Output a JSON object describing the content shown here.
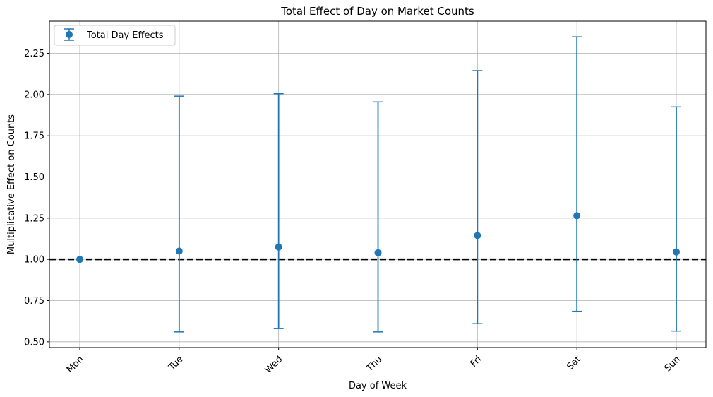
{
  "chart_data": {
    "type": "scatter",
    "title": "Total Effect of Day on Market Counts",
    "xlabel": "Day of Week",
    "ylabel": "Multiplicative Effect on Counts",
    "categories": [
      "Mon",
      "Tue",
      "Wed",
      "Thu",
      "Fri",
      "Sat",
      "Sun"
    ],
    "series": [
      {
        "name": "Total Day Effects",
        "color": "#1f77b4",
        "values": [
          1.0,
          1.05,
          1.075,
          1.04,
          1.145,
          1.265,
          1.045
        ],
        "lower": [
          1.0,
          0.56,
          0.58,
          0.56,
          0.61,
          0.685,
          0.565
        ],
        "upper": [
          1.0,
          1.99,
          2.005,
          1.955,
          2.145,
          2.35,
          1.925
        ]
      }
    ],
    "reference_line": {
      "y": 1.0,
      "style": "dashed",
      "color": "#000000"
    },
    "ylim": [
      0.465,
      2.445
    ],
    "yticks": [
      "0.50",
      "0.75",
      "1.00",
      "1.25",
      "1.50",
      "1.75",
      "2.00",
      "2.25"
    ],
    "grid": true,
    "legend": "top-left",
    "xtick_rotation": -45
  }
}
